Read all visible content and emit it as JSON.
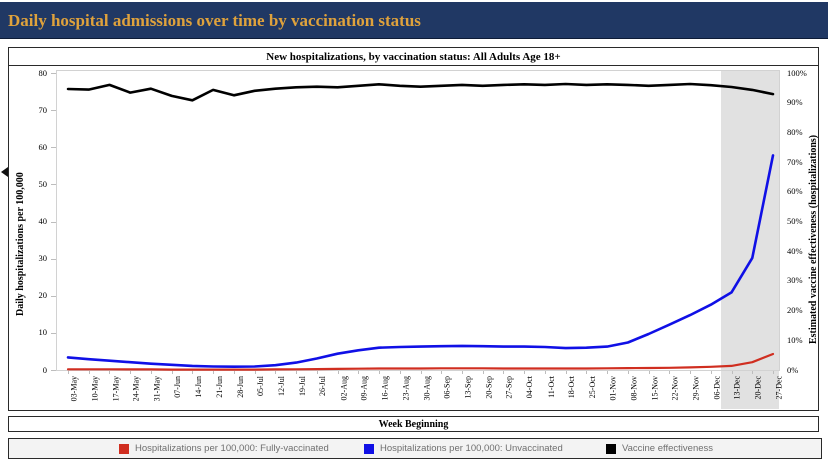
{
  "banner": {
    "title": "Daily hospital admissions over time by vaccination status",
    "bg_color": "#203864",
    "text_color": "#dfa23c"
  },
  "chart": {
    "title": "New hospitalizations, by vaccination status: All Adults Age 18+",
    "y_left_label": "Daily hospitalizations per 100,000",
    "y_right_label": "Estimated vaccine effectiveness (hospitalizations)",
    "x_label": "Week Beginning",
    "left_ticks": [
      0,
      10,
      20,
      30,
      40,
      50,
      60,
      70,
      80
    ],
    "right_ticks": [
      "0%",
      "10%",
      "20%",
      "30%",
      "40%",
      "50%",
      "60%",
      "70%",
      "80%",
      "90%",
      "100%"
    ],
    "band_color": "#e1e1e1"
  },
  "legend": {
    "items": [
      {
        "label": "Hospitalizations per 100,000: Fully-vaccinated",
        "color": "#d02e20"
      },
      {
        "label": "Hospitalizations per 100,000: Unvaccinated",
        "color": "#1010e6"
      },
      {
        "label": "Vaccine effectiveness",
        "color": "#000000"
      }
    ]
  },
  "chart_data": {
    "type": "line",
    "title": "New hospitalizations, by vaccination status: All Adults Age 18+",
    "xlabel": "Week Beginning",
    "ylabel_left": "Daily hospitalizations per 100,000",
    "ylabel_right": "Estimated vaccine effectiveness (hospitalizations)",
    "ylim_left": [
      0,
      80
    ],
    "ylim_right_pct": [
      0,
      100
    ],
    "grid": false,
    "legend_position": "bottom",
    "categories": [
      "03-May",
      "10-May",
      "17-May",
      "24-May",
      "31-May",
      "07-Jun",
      "14-Jun",
      "21-Jun",
      "28-Jun",
      "05-Jul",
      "12-Jul",
      "19-Jul",
      "26-Jul",
      "02-Aug",
      "09-Aug",
      "16-Aug",
      "23-Aug",
      "30-Aug",
      "06-Sep",
      "13-Sep",
      "20-Sep",
      "27-Sep",
      "04-Oct",
      "11-Oct",
      "18-Oct",
      "25-Oct",
      "01-Nov",
      "08-Nov",
      "15-Nov",
      "22-Nov",
      "29-Nov",
      "06-Dec",
      "13-Dec",
      "20-Dec",
      "27-Dec"
    ],
    "series": [
      {
        "name": "Hospitalizations per 100,000: Fully-vaccinated",
        "axis": "left",
        "color": "#d02e20",
        "stroke_width": 2.2,
        "values": [
          0.2,
          0.2,
          0.2,
          0.15,
          0.15,
          0.1,
          0.1,
          0.1,
          0.1,
          0.1,
          0.15,
          0.2,
          0.25,
          0.3,
          0.35,
          0.4,
          0.4,
          0.4,
          0.45,
          0.45,
          0.45,
          0.4,
          0.4,
          0.4,
          0.4,
          0.4,
          0.45,
          0.5,
          0.55,
          0.6,
          0.7,
          0.85,
          1.1,
          2.1,
          4.3
        ]
      },
      {
        "name": "Hospitalizations per 100,000: Unvaccinated",
        "axis": "left",
        "color": "#1010e6",
        "stroke_width": 2.6,
        "values": [
          3.4,
          2.9,
          2.5,
          2.1,
          1.7,
          1.4,
          1.1,
          0.95,
          0.9,
          0.95,
          1.3,
          2.0,
          3.1,
          4.4,
          5.3,
          6.0,
          6.2,
          6.3,
          6.4,
          6.5,
          6.4,
          6.3,
          6.3,
          6.2,
          5.9,
          6.0,
          6.3,
          7.4,
          9.7,
          12.2,
          14.8,
          17.6,
          20.9,
          30.2,
          57.8
        ]
      },
      {
        "name": "Vaccine effectiveness",
        "axis": "right",
        "color": "#000000",
        "stroke_width": 2.6,
        "values": [
          94.6,
          94.4,
          96.0,
          93.4,
          94.7,
          92.3,
          90.8,
          94.3,
          92.5,
          94.0,
          94.7,
          95.2,
          95.4,
          95.2,
          95.7,
          96.2,
          95.7,
          95.4,
          95.7,
          96.0,
          95.7,
          96.0,
          96.2,
          96.0,
          96.3,
          96.0,
          96.2,
          96.0,
          95.7,
          96.0,
          96.3,
          95.9,
          95.3,
          94.3,
          92.9
        ]
      }
    ],
    "shaded_region_categories": [
      "13-Dec",
      "20-Dec",
      "27-Dec"
    ]
  }
}
